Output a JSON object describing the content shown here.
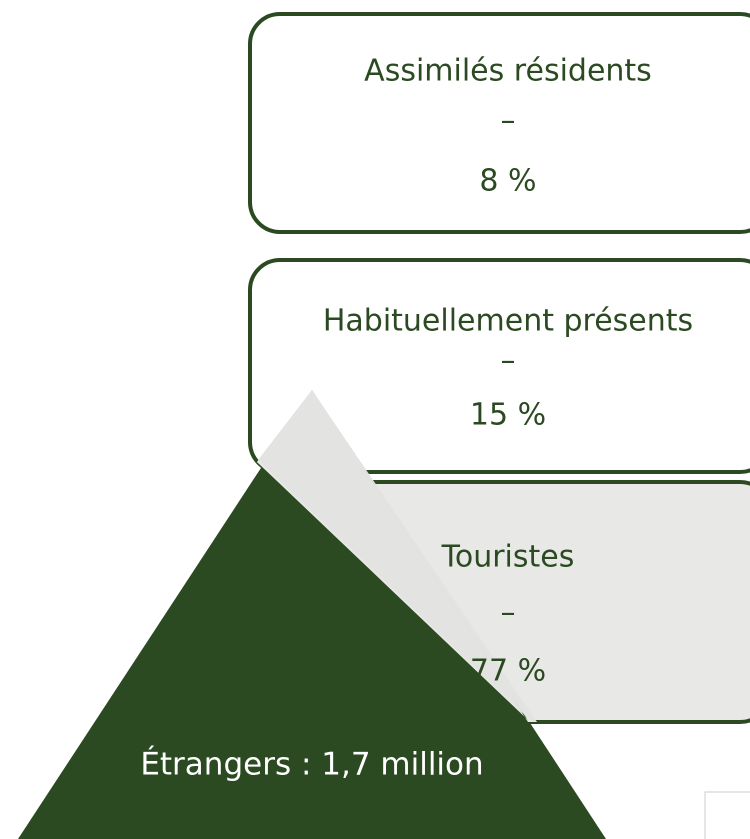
{
  "boxes": [
    {
      "label": "Assimilés résidents",
      "separator": "–",
      "value": "8 %"
    },
    {
      "label": "Habituellement présents",
      "separator": "–",
      "value": "15 %"
    },
    {
      "label": "Touristes",
      "separator": "–",
      "value": "77 %"
    }
  ],
  "base": {
    "label": "Étrangers : 1,7 million"
  }
}
